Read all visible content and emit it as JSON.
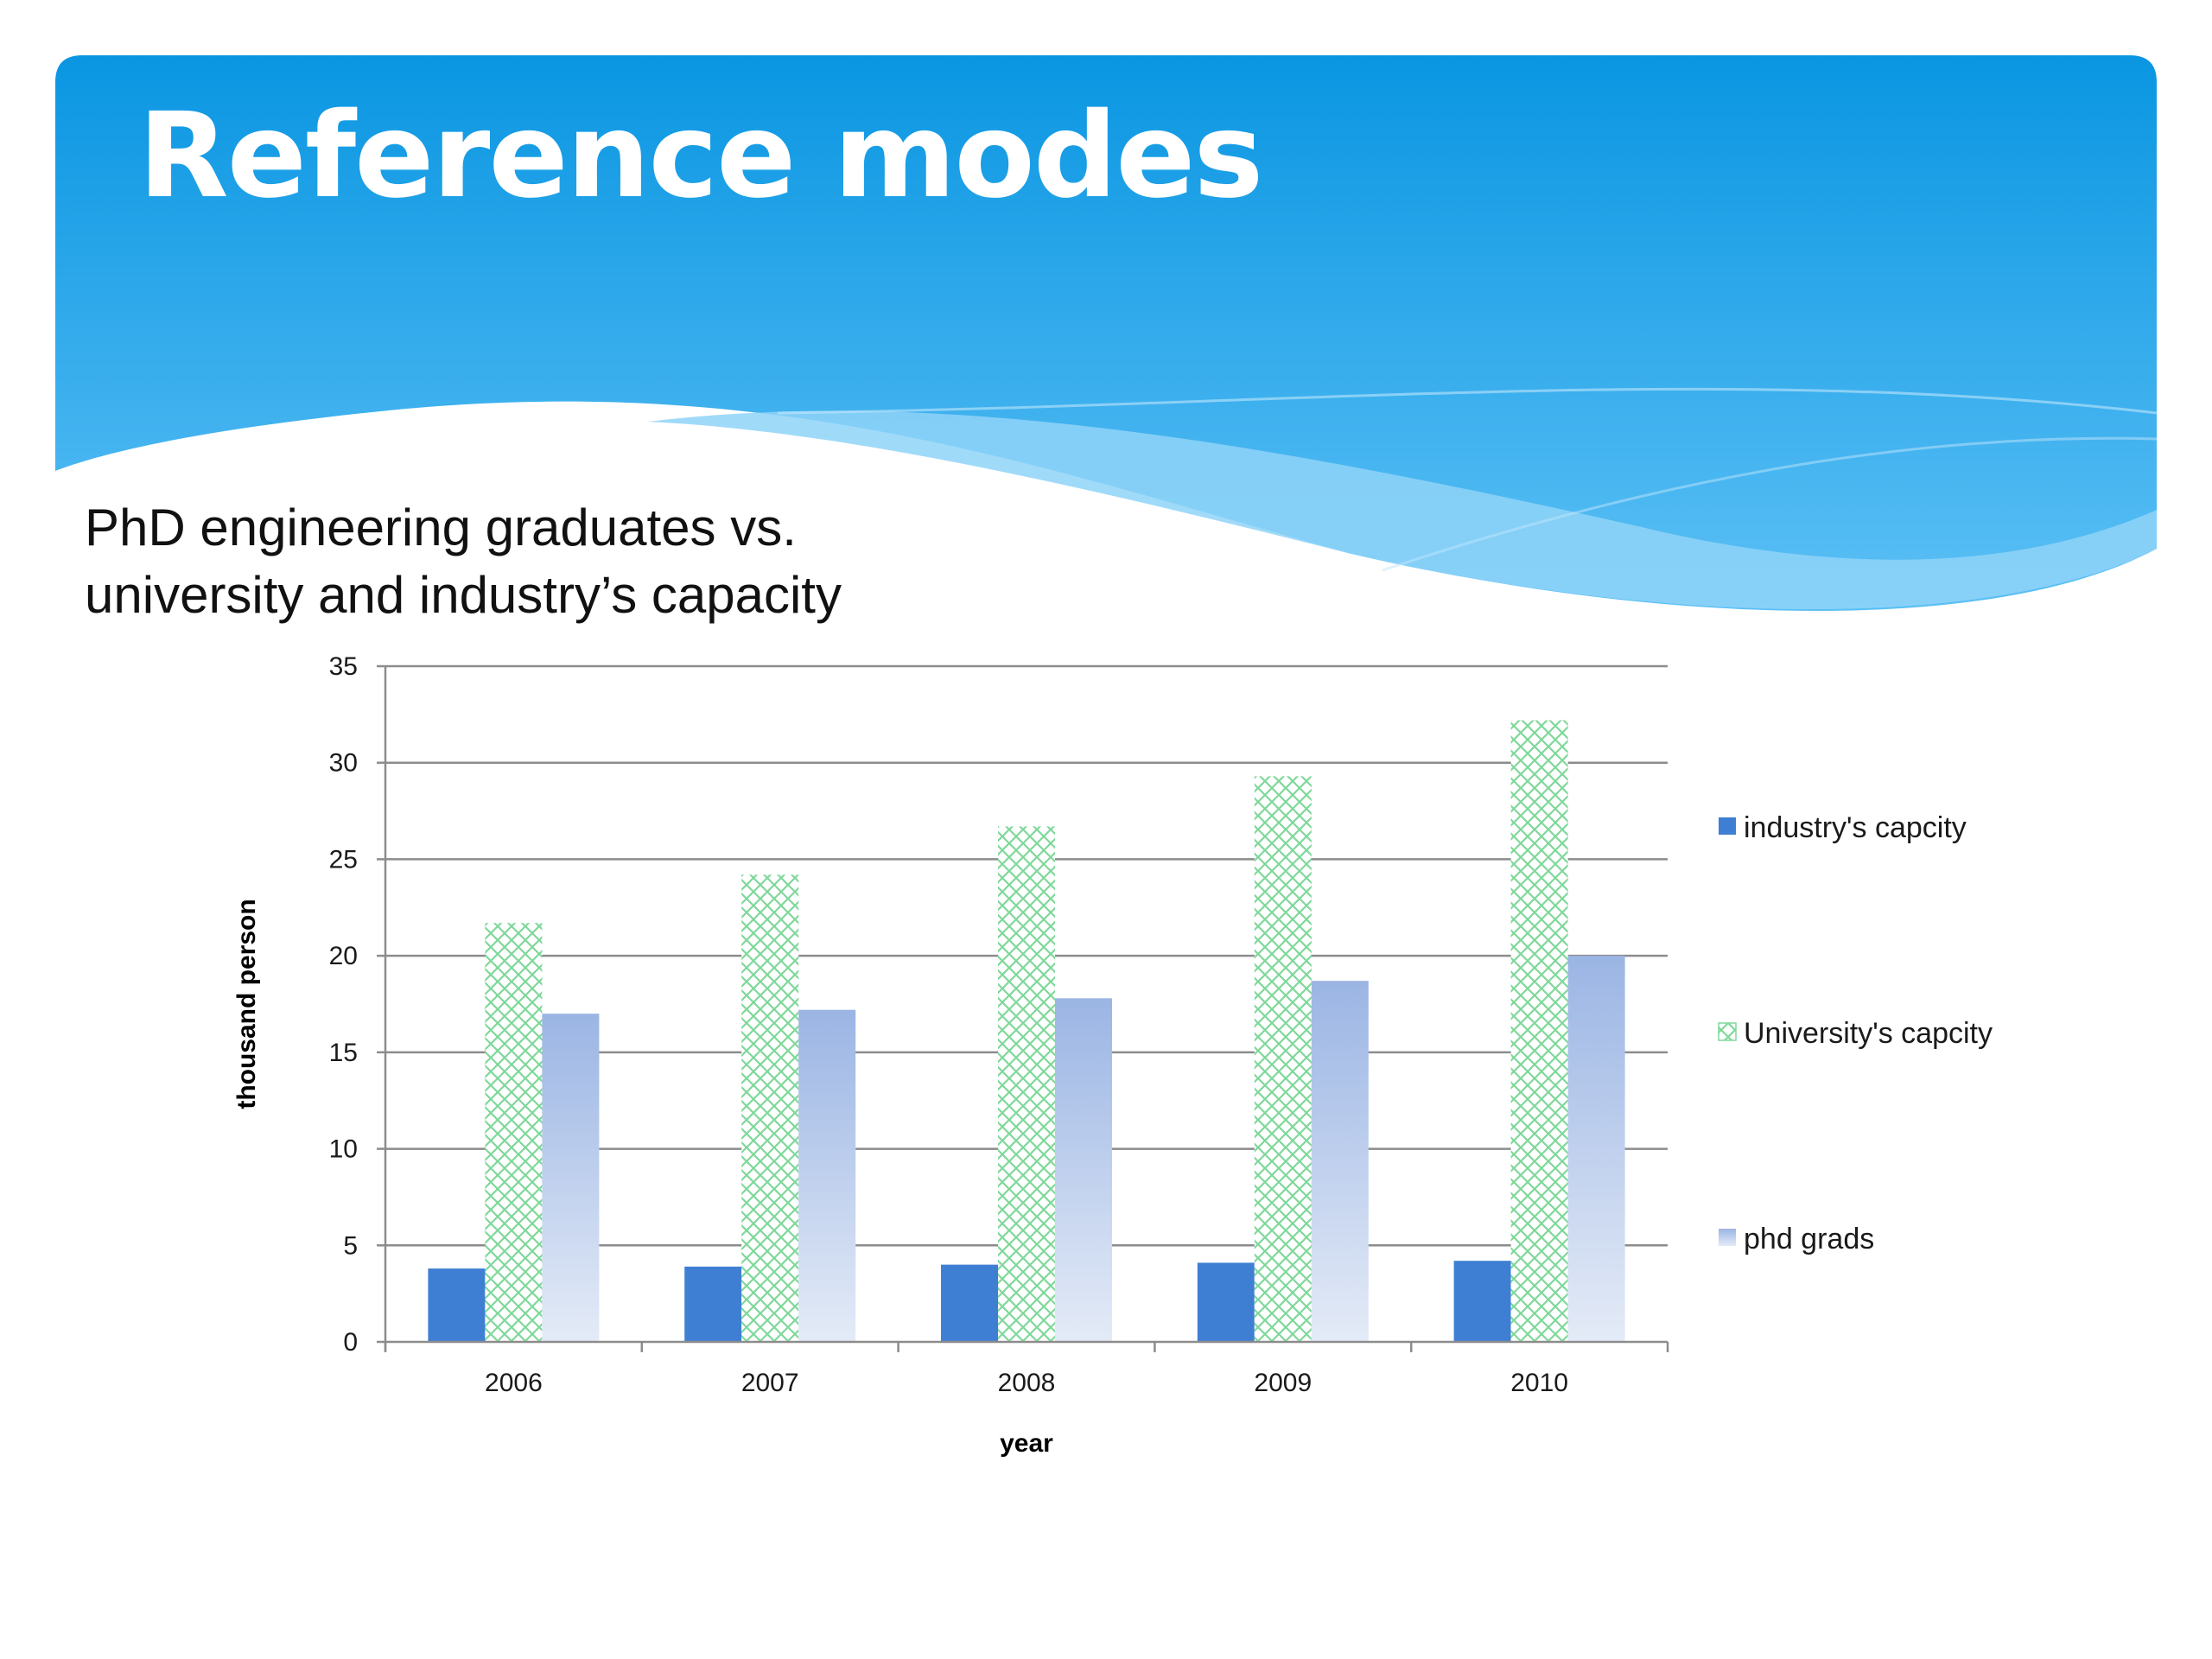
{
  "slide": {
    "title": "Reference modes",
    "subtitle_lines": [
      "PhD engineering graduates vs.",
      "university and industry’s capacity"
    ]
  },
  "colors": {
    "banner_top": "#0a96e2",
    "banner_bottom": "#5cc0f5",
    "industry": "#3f7fd3",
    "university_pattern": "#7fd89a",
    "phd_top": "#9bb5e4",
    "phd_bottom": "#e4ebf7",
    "grid": "#8c8c8c"
  },
  "chart_data": {
    "type": "bar",
    "categories": [
      "2006",
      "2007",
      "2008",
      "2009",
      "2010"
    ],
    "series": [
      {
        "name": "industry's capcity",
        "values": [
          3.8,
          3.9,
          4.0,
          4.1,
          4.2
        ]
      },
      {
        "name": "University's capcity",
        "values": [
          21.7,
          24.2,
          26.7,
          29.3,
          32.2
        ]
      },
      {
        "name": "phd grads",
        "values": [
          17.0,
          17.2,
          17.8,
          18.7,
          20.0
        ]
      }
    ],
    "xlabel": "year",
    "ylabel": "thousand person",
    "ylim": [
      0,
      35
    ],
    "yticks": [
      0,
      5,
      10,
      15,
      20,
      25,
      30,
      35
    ],
    "grid": true,
    "legend": "right"
  }
}
